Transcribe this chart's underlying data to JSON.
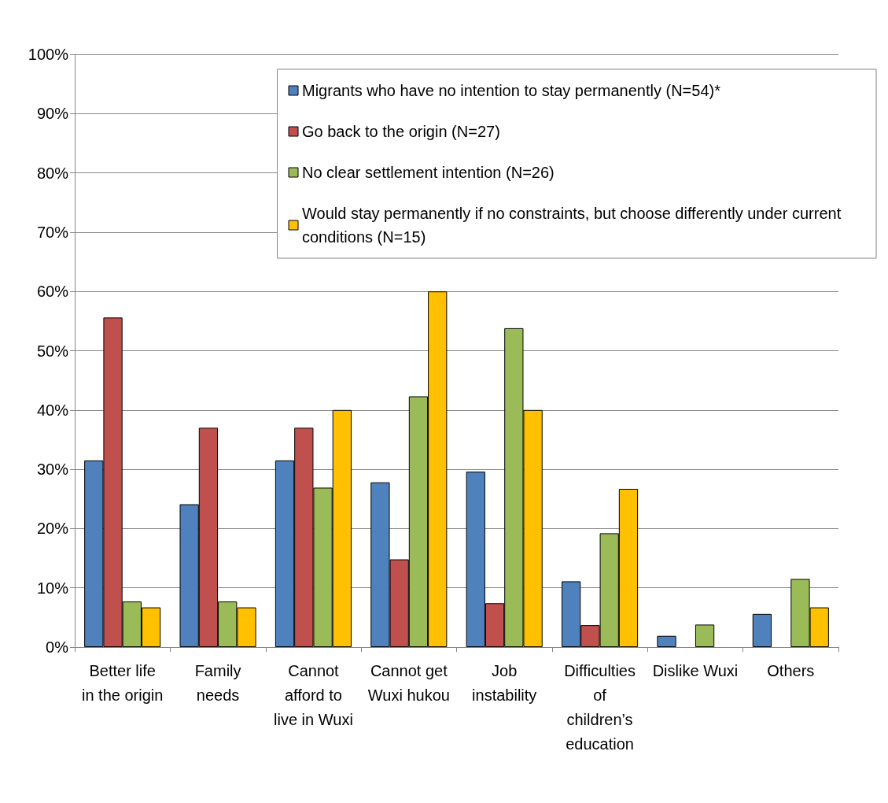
{
  "chart_data": {
    "type": "bar",
    "categories": [
      "Better life\nin the origin",
      "Family\nneeds",
      "Cannot\nafford to\nlive in Wuxi",
      "Cannot get\nWuxi hukou",
      "Job\ninstability",
      "Difficulties\nof\nchildren’s\neducation",
      "Dislike Wuxi",
      "Others"
    ],
    "series": [
      {
        "name": "Migrants who have no intention to stay permanently (N=54)*",
        "color": "#4f81bd",
        "values": [
          31.5,
          24.1,
          31.5,
          27.8,
          29.6,
          11.1,
          1.9,
          5.6
        ]
      },
      {
        "name": "Go back to the origin (N=27)",
        "color": "#c0504d",
        "values": [
          55.6,
          37.0,
          37.0,
          14.8,
          7.4,
          3.7,
          0,
          0
        ]
      },
      {
        "name": "No clear settlement intention (N=26)",
        "color": "#9bbb59",
        "values": [
          7.7,
          7.7,
          26.9,
          42.3,
          53.8,
          19.2,
          3.8,
          11.5
        ]
      },
      {
        "name": "Would stay permanently if no constraints, but choose differently under current conditions (N=15)",
        "color": "#ffc000",
        "values": [
          6.7,
          6.7,
          40.0,
          60.0,
          40.0,
          26.7,
          0,
          6.7
        ]
      }
    ],
    "ylim": [
      0,
      100
    ],
    "yticks": [
      {
        "value": 0,
        "label": "0%"
      },
      {
        "value": 10,
        "label": "10%"
      },
      {
        "value": 20,
        "label": "20%"
      },
      {
        "value": 30,
        "label": "30%"
      },
      {
        "value": 40,
        "label": "40%"
      },
      {
        "value": 50,
        "label": "50%"
      },
      {
        "value": 60,
        "label": "60%"
      },
      {
        "value": 70,
        "label": "70%"
      },
      {
        "value": 80,
        "label": "80%"
      },
      {
        "value": 90,
        "label": "90%"
      },
      {
        "value": 100,
        "label": "100%"
      }
    ],
    "grid": "y",
    "legend": "top right"
  }
}
